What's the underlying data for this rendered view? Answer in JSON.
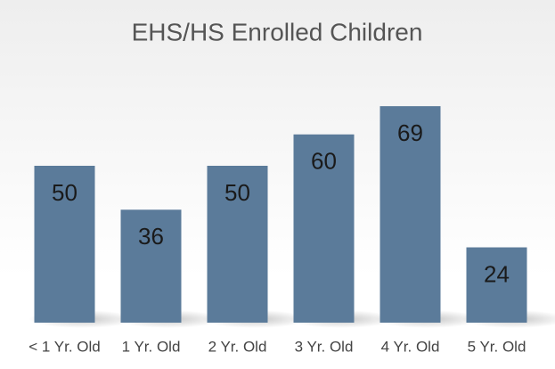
{
  "chart_data": {
    "type": "bar",
    "title": "EHS/HS Enrolled Children",
    "categories": [
      "< 1 Yr. Old",
      "1 Yr. Old",
      "2 Yr. Old",
      "3 Yr. Old",
      "4 Yr. Old",
      "5 Yr. Old"
    ],
    "values": [
      50,
      36,
      50,
      60,
      69,
      24
    ],
    "color": "#5b7b9a"
  }
}
